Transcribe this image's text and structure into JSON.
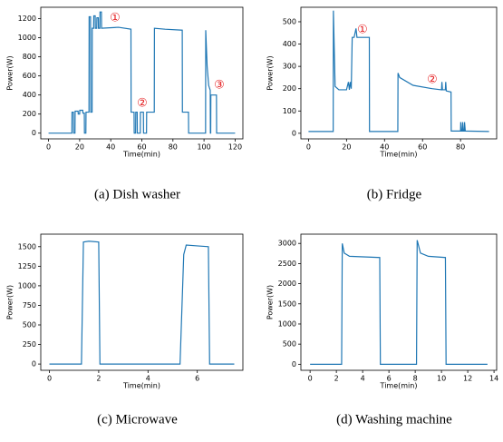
{
  "chart_data": [
    {
      "type": "line",
      "caption": "(a) Dish washer",
      "x_label": "Time(min)",
      "y_label": "Power(W)",
      "color": "#1f77b4",
      "annotations": [
        "①",
        "②",
        "③"
      ],
      "x": [
        0,
        15,
        15.1,
        16,
        16.1,
        17,
        17.1,
        19,
        19.1,
        20,
        20.1,
        22,
        22.1,
        23,
        23.1,
        24,
        24.1,
        26,
        26.1,
        27,
        27.1,
        28,
        28.1,
        29,
        29.1,
        30,
        30.1,
        31,
        31.1,
        32,
        32.1,
        33,
        33.1,
        34,
        34.1,
        45,
        53,
        53.1,
        55,
        55.1,
        56,
        56.1,
        57,
        57.1,
        59,
        59.1,
        61,
        61.1,
        63,
        63.1,
        68,
        68.1,
        75,
        86,
        86.1,
        90,
        90.1,
        101,
        101.1,
        102,
        103,
        104,
        104.1,
        104.3,
        104.4,
        108,
        108.1,
        120
      ],
      "values": [
        0,
        0,
        220,
        220,
        0,
        0,
        230,
        230,
        200,
        200,
        240,
        240,
        210,
        210,
        0,
        0,
        220,
        220,
        1220,
        1220,
        220,
        220,
        1100,
        1100,
        1230,
        1230,
        1100,
        1100,
        1210,
        1210,
        1100,
        1100,
        1270,
        1270,
        1100,
        1110,
        1090,
        220,
        220,
        0,
        0,
        220,
        220,
        0,
        0,
        220,
        220,
        0,
        0,
        220,
        220,
        1100,
        1090,
        1080,
        220,
        220,
        0,
        0,
        1080,
        700,
        500,
        450,
        0,
        0,
        400,
        400,
        0,
        0
      ],
      "xlim": [
        -5,
        125
      ],
      "ylim": [
        -60,
        1320
      ],
      "xticks": [
        0,
        20,
        40,
        60,
        80,
        100,
        120
      ],
      "yticks": [
        0,
        200,
        400,
        600,
        800,
        1000,
        1200
      ]
    },
    {
      "type": "line",
      "caption": "(b) Fridge",
      "x_label": "Time(min)",
      "y_label": "Power(W)",
      "color": "#1f77b4",
      "annotations": [
        "①",
        "②"
      ],
      "x": [
        0,
        13,
        13.1,
        14,
        16,
        20,
        21,
        21.5,
        22,
        22.5,
        23,
        24,
        25,
        25.5,
        32,
        32.1,
        47,
        47.1,
        48,
        55,
        65,
        70,
        70.2,
        70.5,
        72,
        72.2,
        72.5,
        75,
        75.1,
        80,
        80.1,
        80.5,
        81,
        81.1,
        81.5,
        82,
        82.1,
        82.5,
        95
      ],
      "values": [
        8,
        8,
        550,
        210,
        195,
        195,
        230,
        195,
        230,
        200,
        430,
        430,
        470,
        430,
        430,
        8,
        8,
        270,
        250,
        215,
        200,
        195,
        230,
        195,
        195,
        230,
        190,
        185,
        10,
        10,
        50,
        10,
        10,
        50,
        10,
        10,
        50,
        10,
        8
      ],
      "xlim": [
        -4,
        99
      ],
      "ylim": [
        -25,
        565
      ],
      "xticks": [
        0,
        20,
        40,
        60,
        80
      ],
      "yticks": [
        0,
        100,
        200,
        300,
        400,
        500
      ]
    },
    {
      "type": "line",
      "caption": "(c) Microwave",
      "x_label": "Time(min)",
      "y_label": "Power(W)",
      "color": "#1f77b4",
      "annotations": [],
      "x": [
        0,
        1.3,
        1.38,
        1.6,
        2.0,
        2.05,
        5.3,
        5.45,
        5.55,
        6.0,
        6.45,
        6.5,
        7.5
      ],
      "values": [
        0,
        0,
        1560,
        1570,
        1560,
        0,
        0,
        1400,
        1520,
        1510,
        1500,
        0,
        0
      ],
      "xlim": [
        -0.35,
        7.85
      ],
      "ylim": [
        -80,
        1660
      ],
      "xticks": [
        0,
        2,
        4,
        6
      ],
      "yticks": [
        0,
        250,
        500,
        750,
        1000,
        1250,
        1500
      ]
    },
    {
      "type": "line",
      "caption": "(d) Washing machine",
      "x_label": "Time(min)",
      "y_label": "Power(W)",
      "color": "#1f77b4",
      "annotations": [],
      "x": [
        0,
        2.4,
        2.45,
        2.6,
        3.0,
        5.3,
        5.35,
        8.1,
        8.15,
        8.4,
        9,
        10.3,
        10.35,
        13.5
      ],
      "values": [
        0,
        0,
        3000,
        2760,
        2680,
        2650,
        0,
        0,
        3080,
        2760,
        2680,
        2650,
        0,
        0
      ],
      "xlim": [
        -0.7,
        14.2
      ],
      "ylim": [
        -150,
        3230
      ],
      "xticks": [
        0,
        2,
        4,
        6,
        8,
        10,
        12,
        14
      ],
      "yticks": [
        0,
        500,
        1000,
        1500,
        2000,
        2500,
        3000
      ]
    }
  ]
}
